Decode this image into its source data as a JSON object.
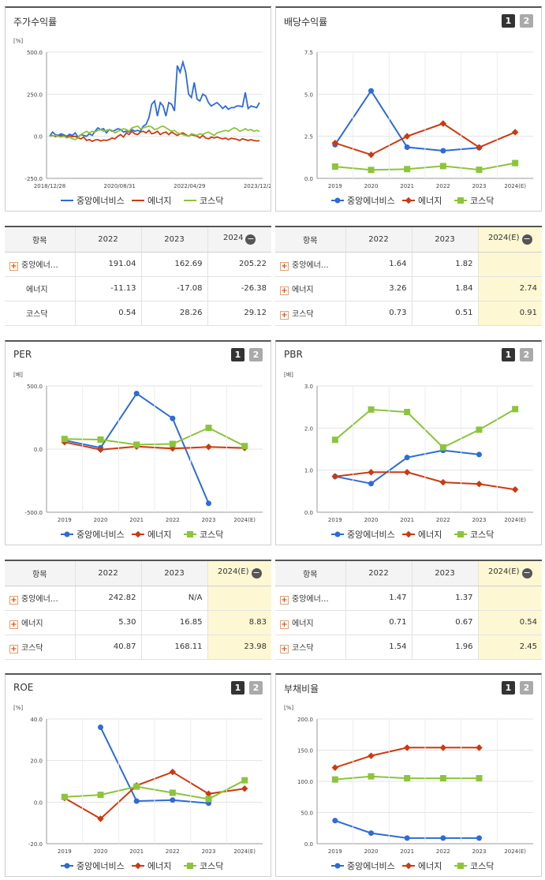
{
  "colors": {
    "company": "#2d6bd8",
    "energy": "#cc3a10",
    "kosdaq": "#8cc43a"
  },
  "legend": [
    "중앙에너비스",
    "에너지",
    "코스닥"
  ],
  "panels": [
    {
      "title": "주가수익률",
      "pager": false
    },
    {
      "title": "배당수익률",
      "pager": true
    },
    {
      "title": "PER",
      "pager": true
    },
    {
      "title": "PBR",
      "pager": true
    },
    {
      "title": "ROE",
      "pager": true
    },
    {
      "title": "부채비율",
      "pager": true
    }
  ],
  "pager_labels": [
    "1",
    "2"
  ],
  "chart_data": [
    {
      "id": "stock-return",
      "type": "line",
      "title": "주가수익률",
      "unit": "[%]",
      "yticks": [
        "500.0",
        "250.0",
        "0.0",
        "-250.0"
      ],
      "ylim": [
        -250,
        500
      ],
      "xticks": [
        "2018/12/28",
        "2020/08/31",
        "2022/04/29",
        "2023/12/28"
      ],
      "x_note": "weekly index from 2018/12/28 to 2024, values in %",
      "series": [
        {
          "name": "중앙에너비스",
          "values": [
            0,
            25,
            10,
            5,
            15,
            8,
            0,
            12,
            5,
            20,
            -5,
            10,
            5,
            0,
            15,
            5,
            30,
            50,
            40,
            45,
            20,
            40,
            30,
            35,
            45,
            40,
            25,
            30,
            25,
            40,
            30,
            35,
            30,
            60,
            70,
            110,
            190,
            210,
            120,
            200,
            180,
            120,
            200,
            190,
            150,
            420,
            380,
            440,
            380,
            250,
            230,
            320,
            220,
            210,
            250,
            240,
            200,
            180,
            190,
            200,
            185,
            165,
            180,
            160,
            170,
            170,
            180,
            180,
            175,
            260,
            165,
            180,
            175,
            170,
            200
          ]
        },
        {
          "name": "에너지",
          "values": [
            0,
            5,
            -2,
            2,
            5,
            0,
            -5,
            2,
            -2,
            0,
            -10,
            -15,
            -5,
            -25,
            -20,
            -30,
            -22,
            -20,
            -28,
            -22,
            -25,
            -20,
            -10,
            -15,
            0,
            10,
            -5,
            20,
            10,
            30,
            15,
            10,
            25,
            30,
            20,
            35,
            15,
            20,
            30,
            10,
            20,
            25,
            10,
            25,
            15,
            5,
            15,
            20,
            10,
            0,
            10,
            5,
            0,
            -10,
            5,
            -10,
            -15,
            -5,
            -10,
            -5,
            -10,
            -15,
            -10,
            -20,
            -12,
            -15,
            -18,
            -25,
            -15,
            -20,
            -25,
            -20,
            -25,
            -28,
            -26
          ]
        },
        {
          "name": "코스닥",
          "values": [
            0,
            2,
            5,
            0,
            -5,
            0,
            -10,
            -5,
            -15,
            -20,
            -10,
            10,
            20,
            30,
            20,
            30,
            25,
            35,
            40,
            30,
            35,
            40,
            35,
            20,
            30,
            35,
            45,
            40,
            30,
            50,
            55,
            60,
            45,
            50,
            55,
            60,
            55,
            40,
            45,
            55,
            60,
            50,
            40,
            30,
            35,
            20,
            15,
            10,
            5,
            0,
            15,
            10,
            5,
            15,
            10,
            20,
            25,
            15,
            5,
            20,
            25,
            30,
            35,
            30,
            40,
            50,
            45,
            30,
            35,
            45,
            35,
            40,
            30,
            35,
            30
          ]
        }
      ]
    },
    {
      "id": "dividend-yield",
      "type": "line",
      "title": "배당수익률",
      "unit": "",
      "yticks": [
        "7.5",
        "5.0",
        "2.5",
        "0.0"
      ],
      "ylim": [
        0,
        7.5
      ],
      "categories": [
        "2019",
        "2020",
        "2021",
        "2022",
        "2023",
        "2024(E)"
      ],
      "series": [
        {
          "name": "중앙에너비스",
          "values": [
            2.0,
            5.2,
            1.85,
            1.64,
            1.82,
            null
          ]
        },
        {
          "name": "에너지",
          "values": [
            2.1,
            1.4,
            2.5,
            3.26,
            1.84,
            2.74
          ]
        },
        {
          "name": "코스닥",
          "values": [
            0.7,
            0.5,
            0.55,
            0.73,
            0.51,
            0.91
          ]
        }
      ]
    },
    {
      "id": "per",
      "type": "line",
      "title": "PER",
      "unit": "[배]",
      "yticks": [
        "500.0",
        "0.0",
        "-500.0"
      ],
      "ylim": [
        -500,
        500
      ],
      "categories": [
        "2019",
        "2020",
        "2021",
        "2022",
        "2023",
        "2024(E)"
      ],
      "series": [
        {
          "name": "중앙에너비스",
          "values": [
            70,
            10,
            440,
            242.82,
            -430,
            null
          ]
        },
        {
          "name": "에너지",
          "values": [
            55,
            -5,
            20,
            5.3,
            16.85,
            8.83
          ]
        },
        {
          "name": "코스닥",
          "values": [
            80,
            75,
            35,
            40.87,
            168.11,
            23.98
          ]
        }
      ]
    },
    {
      "id": "pbr",
      "type": "line",
      "title": "PBR",
      "unit": "[배]",
      "yticks": [
        "3.0",
        "2.0",
        "1.0",
        "0.0"
      ],
      "ylim": [
        0,
        3
      ],
      "categories": [
        "2019",
        "2020",
        "2021",
        "2022",
        "2023",
        "2024(E)"
      ],
      "series": [
        {
          "name": "중앙에너비스",
          "values": [
            0.85,
            0.68,
            1.3,
            1.47,
            1.37,
            null
          ]
        },
        {
          "name": "에너지",
          "values": [
            0.85,
            0.95,
            0.95,
            0.71,
            0.67,
            0.54
          ]
        },
        {
          "name": "코스닥",
          "values": [
            1.72,
            2.44,
            2.38,
            1.54,
            1.96,
            2.45
          ]
        }
      ]
    },
    {
      "id": "roe",
      "type": "line",
      "title": "ROE",
      "unit": "[%]",
      "yticks": [
        "40.0",
        "20.0",
        "0.0",
        "-20.0"
      ],
      "ylim": [
        -20,
        40
      ],
      "categories": [
        "2019",
        "2020",
        "2021",
        "2022",
        "2023",
        "2024(E)"
      ],
      "series": [
        {
          "name": "중앙에너비스",
          "values": [
            null,
            36,
            0.5,
            1,
            -0.5,
            null
          ]
        },
        {
          "name": "에너지",
          "values": [
            2,
            -8,
            8,
            14.5,
            4,
            6.5
          ]
        },
        {
          "name": "코스닥",
          "values": [
            2.5,
            3.5,
            7.5,
            4.5,
            1.5,
            10.5
          ]
        }
      ]
    },
    {
      "id": "debt-ratio",
      "type": "line",
      "title": "부채비율",
      "unit": "[%]",
      "yticks": [
        "200.0",
        "150.0",
        "100.0",
        "50.0",
        "0.0"
      ],
      "ylim": [
        0,
        200
      ],
      "categories": [
        "2019",
        "2020",
        "2021",
        "2022",
        "2023",
        "2024(E)"
      ],
      "series": [
        {
          "name": "중앙에너비스",
          "values": [
            37,
            17,
            9,
            9,
            9,
            null
          ]
        },
        {
          "name": "에너지",
          "values": [
            122,
            141,
            154,
            154,
            154,
            null
          ]
        },
        {
          "name": "코스닥",
          "values": [
            103,
            108,
            105,
            105,
            105,
            null
          ]
        }
      ]
    }
  ],
  "tables": [
    {
      "id": "stock-return-table",
      "header": [
        "항목",
        "2022",
        "2023",
        "2024"
      ],
      "rows": [
        {
          "name": "중앙에너…",
          "icon": true,
          "values": [
            "191.04",
            "162.69",
            "205.22"
          ]
        },
        {
          "name": "에너지",
          "icon": false,
          "values": [
            "-11.13",
            "-17.08",
            "-26.38"
          ]
        },
        {
          "name": "코스닥",
          "icon": false,
          "values": [
            "0.54",
            "28.26",
            "29.12"
          ]
        }
      ],
      "highlight_last": false
    },
    {
      "id": "dividend-table",
      "header": [
        "항목",
        "2022",
        "2023",
        "2024(E)"
      ],
      "rows": [
        {
          "name": "중앙에너…",
          "icon": true,
          "values": [
            "1.64",
            "1.82",
            ""
          ]
        },
        {
          "name": "에너지",
          "icon": true,
          "values": [
            "3.26",
            "1.84",
            "2.74"
          ]
        },
        {
          "name": "코스닥",
          "icon": true,
          "values": [
            "0.73",
            "0.51",
            "0.91"
          ]
        }
      ],
      "highlight_last": true
    },
    {
      "id": "per-table",
      "header": [
        "항목",
        "2022",
        "2023",
        "2024(E)"
      ],
      "rows": [
        {
          "name": "중앙에너…",
          "icon": true,
          "values": [
            "242.82",
            "N/A",
            ""
          ]
        },
        {
          "name": "에너지",
          "icon": true,
          "values": [
            "5.30",
            "16.85",
            "8.83"
          ]
        },
        {
          "name": "코스닥",
          "icon": true,
          "values": [
            "40.87",
            "168.11",
            "23.98"
          ]
        }
      ],
      "highlight_last": true
    },
    {
      "id": "pbr-table",
      "header": [
        "항목",
        "2022",
        "2023",
        "2024(E)"
      ],
      "rows": [
        {
          "name": "중앙에너…",
          "icon": true,
          "values": [
            "1.47",
            "1.37",
            ""
          ]
        },
        {
          "name": "에너지",
          "icon": true,
          "values": [
            "0.71",
            "0.67",
            "0.54"
          ]
        },
        {
          "name": "코스닥",
          "icon": true,
          "values": [
            "1.54",
            "1.96",
            "2.45"
          ]
        }
      ],
      "highlight_last": true
    }
  ]
}
